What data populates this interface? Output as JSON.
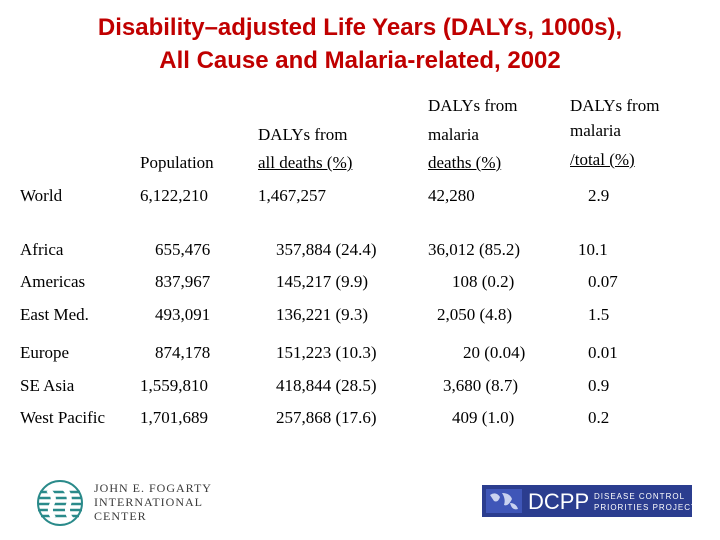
{
  "title": {
    "line1": "Disability–adjusted Life Years (DALYs, 1000s),",
    "line2": "All Cause and Malaria-related, 2002"
  },
  "columns": {
    "population": "Population",
    "all_deaths_line1": "DALYs from",
    "all_deaths_line2": "all deaths (%)",
    "malaria_line1": "DALYs from",
    "malaria_line2": "malaria",
    "malaria_line3": "deaths (%)",
    "total_line1": "DALYs from",
    "total_line2": "malaria",
    "total_line3": "/total (%)"
  },
  "rows": [
    {
      "region": "World",
      "population": "6,122,210",
      "all_deaths": "1,467,257",
      "malaria": "42,280",
      "total": "2.9"
    },
    {
      "region": "Africa",
      "population": "655,476",
      "all_deaths": "357,884 (24.4)",
      "malaria": "36,012 (85.2)",
      "total": "10.1"
    },
    {
      "region": "Americas",
      "population": "837,967",
      "all_deaths": "145,217 (9.9)",
      "malaria": "108 (0.2)",
      "total": "0.07"
    },
    {
      "region": "East Med.",
      "population": "493,091",
      "all_deaths": "136,221 (9.3)",
      "malaria": "2,050 (4.8)",
      "total": "1.5"
    },
    {
      "region": "Europe",
      "population": "874,178",
      "all_deaths": "151,223 (10.3)",
      "malaria": "20 (0.04)",
      "total": "0.01"
    },
    {
      "region": "SE Asia",
      "population": "1,559,810",
      "all_deaths": "418,844 (28.5)",
      "malaria": "3,680 (8.7)",
      "total": "0.9"
    },
    {
      "region": "West Pacific",
      "population": "1,701,689",
      "all_deaths": "257,868 (17.6)",
      "malaria": "409 (1.0)",
      "total": "0.2"
    }
  ],
  "logos": {
    "fic_line1": "JOHN E. FOGARTY",
    "fic_line2": "INTERNATIONAL",
    "fic_line3": "CENTER",
    "dcpp_mark": "DCPP",
    "dcpp_line1": "DISEASE CONTROL",
    "dcpp_line2": "PRIORITIES PROJECT"
  },
  "colors": {
    "title": "#c00000",
    "dcpp_bg": "#2b3d8f"
  }
}
